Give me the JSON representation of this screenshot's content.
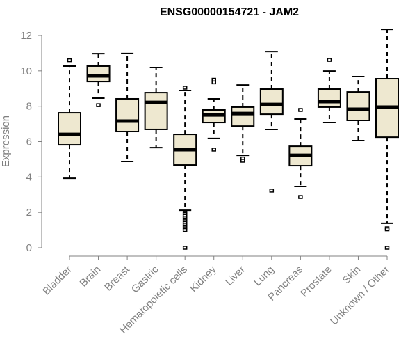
{
  "chart_data": {
    "type": "boxplot",
    "title": "ENSG00000154721 - JAM2",
    "xlabel": "",
    "ylabel": "Expression",
    "ylim": [
      0,
      12
    ],
    "yticks": [
      0,
      2,
      4,
      6,
      8,
      10,
      12
    ],
    "grid": false,
    "legend": null,
    "box_fill": "#EEE8D0",
    "box_stroke": "#000000",
    "categories": [
      "Bladder",
      "Brain",
      "Breast",
      "Gastric",
      "Hematopoietic cells",
      "Kidney",
      "Liver",
      "Lung",
      "Pancreas",
      "Prostate",
      "Skin",
      "Unknown / Other"
    ],
    "series": [
      {
        "name": "Bladder",
        "whisker_low": 3.93,
        "q1": 5.82,
        "median": 6.41,
        "q3": 7.63,
        "whisker_high": 10.27,
        "outliers": [
          10.6
        ]
      },
      {
        "name": "Brain",
        "whisker_low": 8.46,
        "q1": 9.4,
        "median": 9.72,
        "q3": 10.27,
        "whisker_high": 10.97,
        "outliers": [
          8.06
        ]
      },
      {
        "name": "Breast",
        "whisker_low": 4.88,
        "q1": 6.57,
        "median": 7.16,
        "q3": 8.42,
        "whisker_high": 10.98,
        "outliers": []
      },
      {
        "name": "Gastric",
        "whisker_low": 5.66,
        "q1": 6.69,
        "median": 8.22,
        "q3": 8.77,
        "whisker_high": 10.19,
        "outliers": []
      },
      {
        "name": "Hematopoietic cells",
        "whisker_low": 2.12,
        "q1": 4.68,
        "median": 5.55,
        "q3": 6.41,
        "whisker_high": 8.89,
        "outliers": [
          9.05,
          2.0,
          1.9,
          1.8,
          1.7,
          1.6,
          1.5,
          1.4,
          1.3,
          1.2,
          1.1,
          1.0,
          0.0
        ]
      },
      {
        "name": "Kidney",
        "whisker_low": 6.18,
        "q1": 7.08,
        "median": 7.51,
        "q3": 7.79,
        "whisker_high": 8.42,
        "outliers": [
          9.5,
          9.35,
          5.55
        ]
      },
      {
        "name": "Liver",
        "whisker_low": 5.23,
        "q1": 6.88,
        "median": 7.59,
        "q3": 7.95,
        "whisker_high": 9.2,
        "outliers": [
          5.05,
          4.92
        ]
      },
      {
        "name": "Lung",
        "whisker_low": 6.69,
        "q1": 7.55,
        "median": 8.1,
        "q3": 8.97,
        "whisker_high": 11.09,
        "outliers": [
          3.23
        ]
      },
      {
        "name": "Pancreas",
        "whisker_low": 3.46,
        "q1": 4.64,
        "median": 5.23,
        "q3": 5.74,
        "whisker_high": 7.28,
        "outliers": [
          7.79,
          2.87
        ]
      },
      {
        "name": "Prostate",
        "whisker_low": 7.08,
        "q1": 7.95,
        "median": 8.26,
        "q3": 8.97,
        "whisker_high": 9.99,
        "outliers": [
          10.62
        ]
      },
      {
        "name": "Skin",
        "whisker_low": 6.06,
        "q1": 7.2,
        "median": 7.83,
        "q3": 8.81,
        "whisker_high": 9.68,
        "outliers": []
      },
      {
        "name": "Unknown / Other",
        "whisker_low": 1.38,
        "q1": 6.25,
        "median": 7.95,
        "q3": 9.56,
        "whisker_high": 12.35,
        "outliers": [
          1.1,
          1.04,
          0.0
        ]
      }
    ]
  }
}
